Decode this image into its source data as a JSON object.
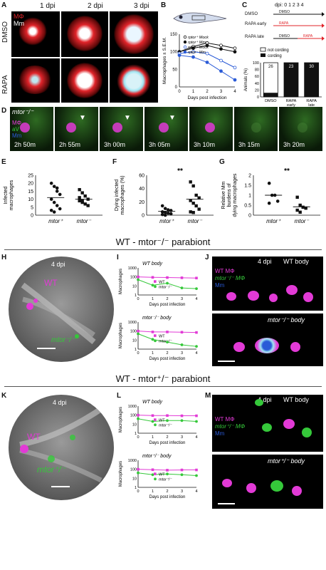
{
  "panelA": {
    "label": "A",
    "cols": [
      "1 dpi",
      "2 dpi",
      "3 dpi"
    ],
    "rows": [
      "DMSO",
      "RAPA"
    ],
    "legend_mphi": "MΦ",
    "legend_mm": "Mm"
  },
  "panelB": {
    "label": "B",
    "ylabel": "Macrophages ± S.E.M.",
    "xlabel": "Days post infection",
    "legend": [
      "rptor⁺ Mock",
      "rptor⁺ Mm",
      "rptor⁻ Mock",
      "rptor⁻ Mm"
    ]
  },
  "panelC": {
    "label": "C",
    "timeline_label": "dpi: 0  1  2  3  4",
    "rows": [
      "DMSO",
      "RAPA early",
      "RAPA late"
    ],
    "legend": [
      "not cording",
      "cording"
    ],
    "ylabel": "Animals (%)",
    "counts": [
      "26",
      "23",
      "30"
    ]
  },
  "panelD": {
    "label": "D",
    "genotype": "mtor⁻/⁻",
    "legend": [
      "MΦ",
      "aV",
      "Mm"
    ],
    "times": [
      "2h 50m",
      "2h 55m",
      "3h 00m",
      "3h 05m",
      "3h 10m",
      "3h 15m",
      "3h 20m"
    ]
  },
  "panelE": {
    "label": "E",
    "ylabel": "Infected macrophages",
    "groups": [
      "mtor⁺",
      "mtor⁻"
    ]
  },
  "panelF": {
    "label": "F",
    "ylabel": "Dying infected macrophages (%)",
    "sig": "**",
    "groups": [
      "mtor⁺",
      "mtor⁻"
    ]
  },
  "panelG": {
    "label": "G",
    "ylabel": "Relative Mm burdens of dying macrophages",
    "sig": "**",
    "groups": [
      "mtor⁺",
      "mtor⁻"
    ]
  },
  "title1": "WT - mtor⁻/⁻ parabiont",
  "panelH": {
    "label": "H",
    "dpi": "4 dpi",
    "wt": "WT",
    "mut": "mtor⁻/⁻"
  },
  "panelI": {
    "label": "I",
    "top_title": "WT body",
    "bottom_title": "mtor⁻/⁻ body",
    "ylabel": "Macrophages",
    "xlabel": "Days post infection",
    "legend": [
      "WT",
      "mtor⁻/⁻"
    ]
  },
  "panelJ": {
    "label": "J",
    "dpi": "4 dpi",
    "top_title": "WT body",
    "bottom_title": "mtor⁻/⁻ body",
    "legend": [
      "WT MΦ",
      "mtor⁻/⁻ MΦ",
      "Mm"
    ]
  },
  "title2": "WT - mtor⁺/⁻ parabiont",
  "panelK": {
    "label": "K",
    "dpi": "4 dpi",
    "wt": "WT",
    "mut": "mtor⁺/⁻"
  },
  "panelL": {
    "label": "L",
    "top_title": "WT body",
    "bottom_title": "mtor⁺/⁻ body",
    "ylabel": "Macrophages",
    "xlabel": "Days post infection",
    "legend": [
      "WT",
      "mtor⁺/⁻"
    ]
  },
  "panelM": {
    "label": "M",
    "dpi": "4 dpi",
    "top_title": "WT body",
    "bottom_title": "mtor⁺/⁻ body",
    "legend": [
      "WT MΦ",
      "mtor⁺/⁻ MΦ",
      "Mm"
    ]
  },
  "colors": {
    "magenta": "#e23ad6",
    "green": "#35c83a",
    "red": "#e0242a",
    "cyan": "#9fe6f2",
    "blue": "#2b5bd7"
  },
  "chart_data": [
    {
      "type": "line",
      "panel": "B",
      "x": [
        0,
        1,
        2,
        3,
        4
      ],
      "series": [
        {
          "name": "rptor⁺ Mock",
          "values": [
            100,
            115,
            125,
            118,
            110
          ]
        },
        {
          "name": "rptor⁺ Mm",
          "values": [
            100,
            110,
            118,
            108,
            100
          ]
        },
        {
          "name": "rptor⁻ Mock",
          "values": [
            95,
            100,
            95,
            75,
            55
          ]
        },
        {
          "name": "rptor⁻ Mm",
          "values": [
            90,
            85,
            70,
            45,
            20
          ]
        }
      ],
      "ylim": [
        0,
        150
      ],
      "xlabel": "Days post infection",
      "ylabel": "Macrophages ± S.E.M."
    },
    {
      "type": "bar",
      "panel": "C",
      "categories": [
        "DMSO",
        "RAPA early",
        "RAPA late"
      ],
      "series": [
        {
          "name": "cording",
          "values": [
            12,
            100,
            100
          ]
        },
        {
          "name": "not cording",
          "values": [
            88,
            0,
            0
          ]
        }
      ],
      "ylim": [
        0,
        100
      ],
      "ylabel": "Animals (%)"
    },
    {
      "type": "scatter",
      "panel": "E",
      "ylim": [
        0,
        25
      ],
      "groups": [
        "mtor⁺",
        "mtor⁻"
      ],
      "points": [
        [
          20,
          18,
          15,
          13,
          10,
          8,
          6,
          4,
          3,
          2,
          17
        ],
        [
          16,
          14,
          12,
          10,
          9,
          8,
          7,
          6,
          11,
          9
        ]
      ],
      "means": [
        11,
        10
      ],
      "ylabel": "Infected macrophages"
    },
    {
      "type": "scatter",
      "panel": "F",
      "ylim": [
        0,
        60
      ],
      "groups": [
        "mtor⁺",
        "mtor⁻"
      ],
      "points": [
        [
          14,
          10,
          8,
          7,
          5,
          4,
          3,
          2,
          1,
          0
        ],
        [
          50,
          44,
          30,
          26,
          22,
          18,
          14,
          9,
          5,
          4
        ]
      ],
      "means": [
        6,
        24
      ],
      "ylabel": "Dying infected macrophages (%)"
    },
    {
      "type": "scatter",
      "panel": "G",
      "ylim": [
        0,
        2
      ],
      "groups": [
        "mtor⁺",
        "mtor⁻"
      ],
      "points": [
        [
          1.6,
          1.0,
          1.0,
          0.7,
          0.6
        ],
        [
          0.9,
          0.5,
          0.4,
          0.35,
          0.25,
          0.15
        ]
      ],
      "means": [
        1.0,
        0.42
      ],
      "ylabel": "Relative Mm burdens of dying macrophages"
    },
    {
      "type": "line",
      "panel": "I-top",
      "x": [
        0,
        1,
        2,
        3,
        4
      ],
      "series": [
        {
          "name": "WT",
          "values": [
            100,
            90,
            85,
            80,
            75
          ]
        },
        {
          "name": "mtor⁻/⁻",
          "values": [
            50,
            12,
            20,
            6,
            5
          ]
        }
      ],
      "ylim": [
        1,
        1000
      ],
      "log": true
    },
    {
      "type": "line",
      "panel": "I-bottom",
      "x": [
        0,
        1,
        2,
        3,
        4
      ],
      "series": [
        {
          "name": "WT",
          "values": [
            100,
            80,
            80,
            75,
            70
          ]
        },
        {
          "name": "mtor⁻/⁻",
          "values": [
            50,
            12,
            6,
            3,
            2
          ]
        }
      ],
      "ylim": [
        1,
        1000
      ],
      "log": true
    },
    {
      "type": "line",
      "panel": "L-top",
      "x": [
        0,
        1,
        2,
        3,
        4
      ],
      "series": [
        {
          "name": "WT",
          "values": [
            100,
            90,
            90,
            85,
            85
          ]
        },
        {
          "name": "mtor⁺/⁻",
          "values": [
            40,
            20,
            25,
            25,
            20
          ]
        }
      ],
      "ylim": [
        1,
        1000
      ],
      "log": true
    },
    {
      "type": "line",
      "panel": "L-bottom",
      "x": [
        0,
        1,
        2,
        3,
        4
      ],
      "series": [
        {
          "name": "WT",
          "values": [
            100,
            90,
            80,
            85,
            85
          ]
        },
        {
          "name": "mtor⁺/⁻",
          "values": [
            40,
            25,
            30,
            25,
            20
          ]
        }
      ],
      "ylim": [
        1,
        1000
      ],
      "log": true
    }
  ]
}
